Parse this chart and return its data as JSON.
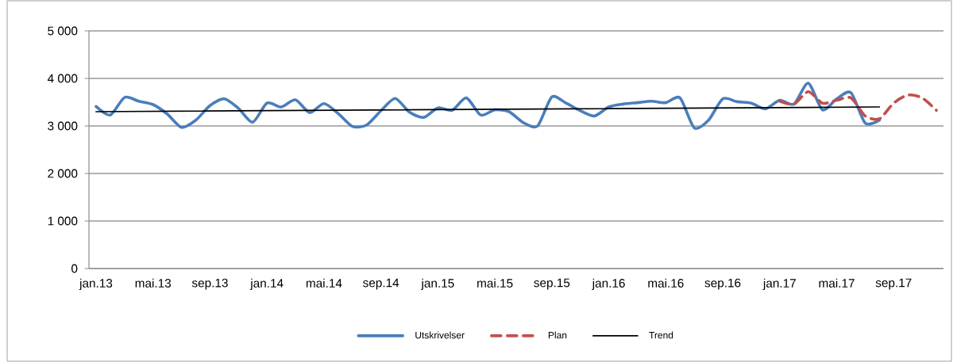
{
  "chart_data": {
    "type": "line",
    "categories": [
      "jan.13",
      null,
      null,
      null,
      "mai.13",
      null,
      null,
      null,
      "sep.13",
      null,
      null,
      null,
      "jan.14",
      null,
      null,
      null,
      "mai.14",
      null,
      null,
      null,
      "sep.14",
      null,
      null,
      null,
      "jan.15",
      null,
      null,
      null,
      "mai.15",
      null,
      null,
      null,
      "sep.15",
      null,
      null,
      null,
      "jan.16",
      null,
      null,
      null,
      "mai.16",
      null,
      null,
      null,
      "sep.16",
      null,
      null,
      null,
      "jan.17",
      null,
      null,
      null,
      "mai.17",
      null,
      null,
      null,
      "sep.17",
      null,
      null,
      null
    ],
    "series": [
      {
        "name": "Utskrivelser",
        "color": "#4a7ebb",
        "line_style": "solid",
        "values": [
          3410,
          3230,
          3600,
          3520,
          3450,
          3250,
          2970,
          3120,
          3430,
          3570,
          3370,
          3080,
          3480,
          3400,
          3550,
          3280,
          3470,
          3260,
          2990,
          3020,
          3320,
          3580,
          3290,
          3180,
          3380,
          3330,
          3590,
          3230,
          3340,
          3300,
          3070,
          3000,
          3610,
          3480,
          3320,
          3210,
          3400,
          3460,
          3490,
          3520,
          3490,
          3590,
          2960,
          3120,
          3570,
          3510,
          3480,
          3360,
          3540,
          3460,
          3900,
          3340,
          3570,
          3700,
          3060,
          3120,
          null,
          null,
          null,
          null
        ]
      },
      {
        "name": "Plan",
        "color": "#c0504d",
        "line_style": "dashed",
        "values": [
          null,
          null,
          null,
          null,
          null,
          null,
          null,
          null,
          null,
          null,
          null,
          null,
          null,
          null,
          null,
          null,
          null,
          null,
          null,
          null,
          null,
          null,
          null,
          null,
          null,
          null,
          null,
          null,
          null,
          null,
          null,
          null,
          null,
          null,
          null,
          null,
          null,
          null,
          null,
          null,
          null,
          null,
          null,
          null,
          null,
          null,
          null,
          null,
          3520,
          3460,
          3720,
          3480,
          3540,
          3590,
          3210,
          3150,
          3480,
          3650,
          3590,
          3330
        ]
      },
      {
        "name": "Trend",
        "color": "#000000",
        "line_style": "solid",
        "values": [
          3300,
          null,
          null,
          null,
          null,
          null,
          null,
          null,
          null,
          null,
          null,
          null,
          null,
          null,
          null,
          null,
          null,
          null,
          null,
          null,
          null,
          null,
          null,
          null,
          null,
          null,
          null,
          null,
          null,
          null,
          null,
          null,
          null,
          null,
          null,
          null,
          null,
          null,
          null,
          null,
          null,
          null,
          null,
          null,
          null,
          null,
          null,
          null,
          null,
          null,
          null,
          null,
          null,
          null,
          null,
          3400,
          null,
          null,
          null,
          null
        ]
      }
    ],
    "ylim": [
      0,
      5000
    ],
    "yticks": [
      0,
      {
        "value": 1000,
        "label": "1 000"
      },
      {
        "value": 2000,
        "label": "2 000"
      },
      {
        "value": 3000,
        "label": "3 000"
      },
      {
        "value": 4000,
        "label": "4 000"
      },
      {
        "value": 5000,
        "label": "5 000"
      }
    ],
    "grid": "y",
    "legend": "bottom",
    "marker": "none"
  }
}
